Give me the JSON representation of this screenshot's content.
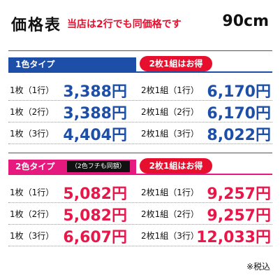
{
  "header": {
    "title": "価格表",
    "note": "当店は2行でも同価格です",
    "size": "90cm"
  },
  "sections": [
    {
      "label": "1色タイプ",
      "badge": "2枚1組はお得",
      "rows": [
        [
          "1枚（1行）",
          "3,388円",
          "2枚1組（1行）",
          "6,170円"
        ],
        [
          "1枚（2行）",
          "3,388円",
          "2枚1組（2行）",
          "6,170円"
        ],
        [
          "1枚（3行）",
          "4,404円",
          "2枚1組（3行）",
          "8,022円"
        ]
      ]
    },
    {
      "label": "2色タイプ",
      "sublabel": "（2色フチも同額）",
      "badge": "2枚1組はお得",
      "rows": [
        [
          "1枚（1行）",
          "5,082円",
          "2枚1組（1行）",
          "9,257円"
        ],
        [
          "1枚（2行）",
          "5,082円",
          "2枚1組（2行）",
          "9,257円"
        ],
        [
          "1枚（3行）",
          "6,607円",
          "2枚1組（3行）",
          "12,033円"
        ]
      ]
    }
  ],
  "footer": "※税込"
}
